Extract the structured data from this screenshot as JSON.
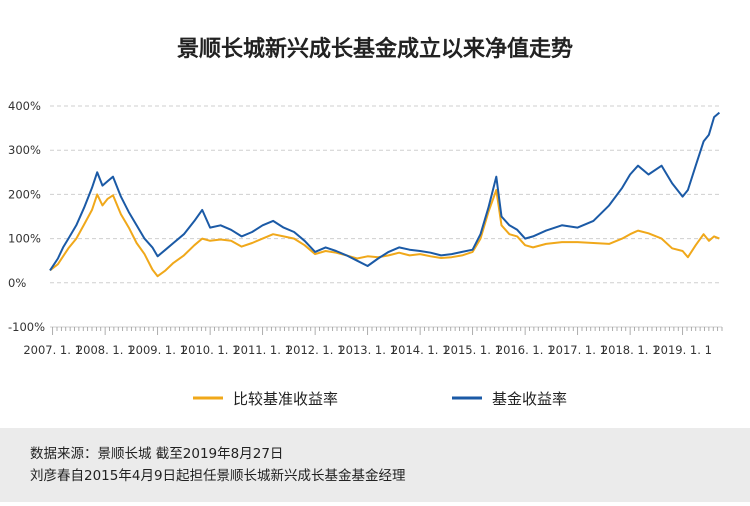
{
  "chart_data": {
    "type": "line",
    "title": "景顺长城新兴成长基金成立以来净值走势",
    "xlabel": "",
    "ylabel": "",
    "x_ticks": [
      "2007. 1. 1",
      "2008. 1. 1",
      "2009. 1. 1",
      "2010. 1. 1",
      "2011. 1. 1",
      "2012. 1. 1",
      "2013. 1. 1",
      "2014. 1. 1",
      "2015. 1. 1",
      "2016. 1. 1",
      "2017. 1. 1",
      "2018. 1. 1",
      "2019. 1. 1"
    ],
    "y_ticks": [
      "400%",
      "300%",
      "200%",
      "100%",
      "0%",
      "-100%"
    ],
    "ylim": [
      -100,
      400
    ],
    "xlim": [
      2006.95,
      2019.75
    ],
    "grid": true,
    "legend_position": "bottom",
    "series": [
      {
        "name": "比较基准收益率",
        "color": "#f0a81a",
        "points": [
          [
            2006.95,
            28
          ],
          [
            2007.1,
            42
          ],
          [
            2007.2,
            60
          ],
          [
            2007.3,
            78
          ],
          [
            2007.45,
            100
          ],
          [
            2007.6,
            132
          ],
          [
            2007.75,
            165
          ],
          [
            2007.85,
            200
          ],
          [
            2007.95,
            175
          ],
          [
            2008.05,
            190
          ],
          [
            2008.15,
            198
          ],
          [
            2008.3,
            155
          ],
          [
            2008.45,
            125
          ],
          [
            2008.6,
            90
          ],
          [
            2008.75,
            65
          ],
          [
            2008.9,
            30
          ],
          [
            2009.0,
            15
          ],
          [
            2009.15,
            28
          ],
          [
            2009.3,
            45
          ],
          [
            2009.5,
            62
          ],
          [
            2009.7,
            85
          ],
          [
            2009.85,
            100
          ],
          [
            2010.0,
            95
          ],
          [
            2010.2,
            98
          ],
          [
            2010.4,
            95
          ],
          [
            2010.6,
            82
          ],
          [
            2010.8,
            90
          ],
          [
            2011.0,
            100
          ],
          [
            2011.2,
            110
          ],
          [
            2011.4,
            105
          ],
          [
            2011.6,
            100
          ],
          [
            2011.8,
            85
          ],
          [
            2012.0,
            65
          ],
          [
            2012.2,
            72
          ],
          [
            2012.4,
            68
          ],
          [
            2012.6,
            62
          ],
          [
            2012.8,
            55
          ],
          [
            2013.0,
            60
          ],
          [
            2013.2,
            58
          ],
          [
            2013.4,
            62
          ],
          [
            2013.6,
            68
          ],
          [
            2013.8,
            62
          ],
          [
            2014.0,
            65
          ],
          [
            2014.2,
            60
          ],
          [
            2014.4,
            56
          ],
          [
            2014.6,
            58
          ],
          [
            2014.8,
            62
          ],
          [
            2015.0,
            70
          ],
          [
            2015.15,
            100
          ],
          [
            2015.3,
            160
          ],
          [
            2015.45,
            210
          ],
          [
            2015.55,
            130
          ],
          [
            2015.7,
            110
          ],
          [
            2015.85,
            105
          ],
          [
            2016.0,
            85
          ],
          [
            2016.15,
            80
          ],
          [
            2016.4,
            88
          ],
          [
            2016.7,
            92
          ],
          [
            2017.0,
            92
          ],
          [
            2017.3,
            90
          ],
          [
            2017.6,
            88
          ],
          [
            2017.85,
            100
          ],
          [
            2018.0,
            110
          ],
          [
            2018.15,
            118
          ],
          [
            2018.35,
            112
          ],
          [
            2018.6,
            100
          ],
          [
            2018.8,
            78
          ],
          [
            2019.0,
            72
          ],
          [
            2019.1,
            58
          ],
          [
            2019.25,
            85
          ],
          [
            2019.4,
            110
          ],
          [
            2019.5,
            95
          ],
          [
            2019.6,
            105
          ],
          [
            2019.7,
            100
          ]
        ]
      },
      {
        "name": "基金收益率",
        "color": "#1b5aa6",
        "points": [
          [
            2006.95,
            28
          ],
          [
            2007.1,
            55
          ],
          [
            2007.2,
            80
          ],
          [
            2007.3,
            100
          ],
          [
            2007.45,
            130
          ],
          [
            2007.6,
            170
          ],
          [
            2007.75,
            215
          ],
          [
            2007.85,
            250
          ],
          [
            2007.95,
            220
          ],
          [
            2008.05,
            230
          ],
          [
            2008.15,
            240
          ],
          [
            2008.3,
            195
          ],
          [
            2008.45,
            160
          ],
          [
            2008.6,
            130
          ],
          [
            2008.75,
            100
          ],
          [
            2008.9,
            80
          ],
          [
            2009.0,
            60
          ],
          [
            2009.15,
            75
          ],
          [
            2009.3,
            90
          ],
          [
            2009.5,
            110
          ],
          [
            2009.7,
            140
          ],
          [
            2009.85,
            165
          ],
          [
            2010.0,
            125
          ],
          [
            2010.2,
            130
          ],
          [
            2010.4,
            120
          ],
          [
            2010.6,
            105
          ],
          [
            2010.8,
            115
          ],
          [
            2011.0,
            130
          ],
          [
            2011.2,
            140
          ],
          [
            2011.4,
            125
          ],
          [
            2011.6,
            115
          ],
          [
            2011.8,
            95
          ],
          [
            2012.0,
            70
          ],
          [
            2012.2,
            80
          ],
          [
            2012.4,
            72
          ],
          [
            2012.6,
            62
          ],
          [
            2012.8,
            50
          ],
          [
            2013.0,
            38
          ],
          [
            2013.2,
            55
          ],
          [
            2013.4,
            70
          ],
          [
            2013.6,
            80
          ],
          [
            2013.8,
            75
          ],
          [
            2014.0,
            72
          ],
          [
            2014.2,
            68
          ],
          [
            2014.4,
            62
          ],
          [
            2014.6,
            65
          ],
          [
            2014.8,
            70
          ],
          [
            2015.0,
            75
          ],
          [
            2015.15,
            110
          ],
          [
            2015.3,
            170
          ],
          [
            2015.45,
            240
          ],
          [
            2015.55,
            150
          ],
          [
            2015.7,
            130
          ],
          [
            2015.85,
            120
          ],
          [
            2016.0,
            100
          ],
          [
            2016.15,
            105
          ],
          [
            2016.4,
            118
          ],
          [
            2016.7,
            130
          ],
          [
            2017.0,
            125
          ],
          [
            2017.3,
            140
          ],
          [
            2017.6,
            175
          ],
          [
            2017.85,
            215
          ],
          [
            2018.0,
            245
          ],
          [
            2018.15,
            265
          ],
          [
            2018.35,
            245
          ],
          [
            2018.6,
            265
          ],
          [
            2018.8,
            225
          ],
          [
            2019.0,
            195
          ],
          [
            2019.1,
            210
          ],
          [
            2019.25,
            265
          ],
          [
            2019.4,
            320
          ],
          [
            2019.5,
            335
          ],
          [
            2019.6,
            375
          ],
          [
            2019.7,
            385
          ]
        ]
      }
    ]
  },
  "footer": {
    "line1": "数据来源：景顺长城  截至2019年8月27日",
    "line2": "刘彦春自2015年4月9日起担任景顺长城新兴成长基金基金经理"
  }
}
